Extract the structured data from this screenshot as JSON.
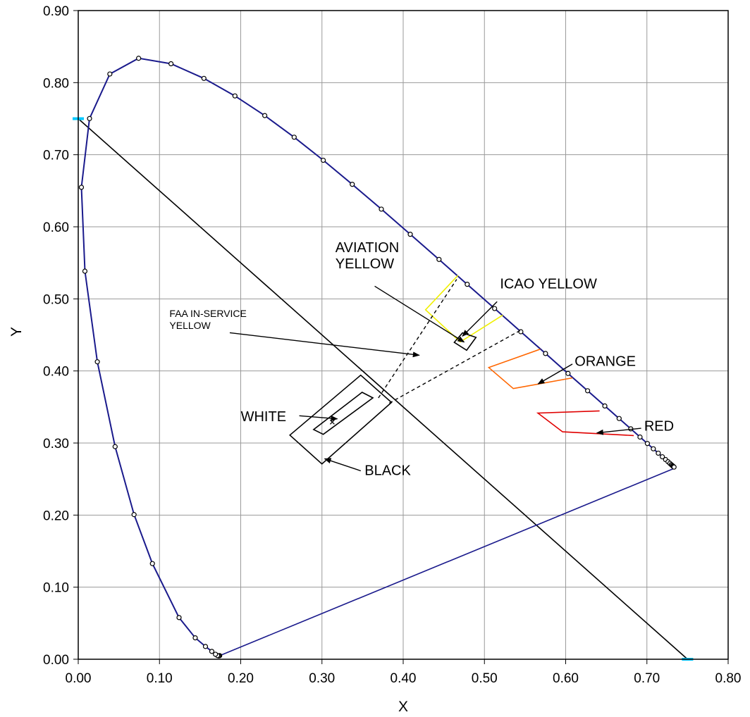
{
  "chart_data": {
    "type": "scatter",
    "title": "",
    "xlabel": "X",
    "ylabel": "Y",
    "xlim": [
      0,
      0.8
    ],
    "ylim": [
      0,
      0.9
    ],
    "x_ticks": [
      "0.00",
      "0.10",
      "0.20",
      "0.30",
      "0.40",
      "0.50",
      "0.60",
      "0.70",
      "0.80"
    ],
    "y_ticks": [
      "0.00",
      "0.10",
      "0.20",
      "0.30",
      "0.40",
      "0.50",
      "0.60",
      "0.70",
      "0.80",
      "0.90"
    ],
    "grid": true,
    "colors": {
      "locus": "#1a1a8c",
      "yellow": "#f0f000",
      "orange": "#ff6600",
      "red": "#e00000",
      "black": "#000000",
      "cyan": "#00c8ff"
    },
    "spectral_locus": [
      [
        0.1741,
        0.005
      ],
      [
        0.1738,
        0.0049
      ],
      [
        0.1733,
        0.0048
      ],
      [
        0.1726,
        0.0048
      ],
      [
        0.1714,
        0.0051
      ],
      [
        0.1689,
        0.0069
      ],
      [
        0.1644,
        0.0109
      ],
      [
        0.1566,
        0.0177
      ],
      [
        0.144,
        0.0297
      ],
      [
        0.1241,
        0.0578
      ],
      [
        0.0913,
        0.1327
      ],
      [
        0.0687,
        0.2007
      ],
      [
        0.0454,
        0.295
      ],
      [
        0.0235,
        0.4127
      ],
      [
        0.0082,
        0.5384
      ],
      [
        0.0039,
        0.6548
      ],
      [
        0.0139,
        0.7502
      ],
      [
        0.0389,
        0.812
      ],
      [
        0.0743,
        0.8338
      ],
      [
        0.1142,
        0.8262
      ],
      [
        0.1547,
        0.8059
      ],
      [
        0.1929,
        0.7816
      ],
      [
        0.2296,
        0.7543
      ],
      [
        0.2658,
        0.7243
      ],
      [
        0.3016,
        0.6923
      ],
      [
        0.3373,
        0.6589
      ],
      [
        0.3731,
        0.6245
      ],
      [
        0.4087,
        0.5896
      ],
      [
        0.4441,
        0.5547
      ],
      [
        0.4788,
        0.5202
      ],
      [
        0.5125,
        0.4866
      ],
      [
        0.5448,
        0.4544
      ],
      [
        0.5752,
        0.4242
      ],
      [
        0.6029,
        0.3965
      ],
      [
        0.627,
        0.3725
      ],
      [
        0.6482,
        0.3514
      ],
      [
        0.6658,
        0.334
      ],
      [
        0.6801,
        0.3197
      ],
      [
        0.6915,
        0.3083
      ],
      [
        0.7006,
        0.2993
      ],
      [
        0.7079,
        0.292
      ],
      [
        0.714,
        0.2859
      ],
      [
        0.719,
        0.2809
      ],
      [
        0.723,
        0.277
      ],
      [
        0.726,
        0.274
      ],
      [
        0.7283,
        0.2717
      ],
      [
        0.73,
        0.27
      ],
      [
        0.7311,
        0.2689
      ],
      [
        0.732,
        0.268
      ],
      [
        0.7327,
        0.2673
      ],
      [
        0.7334,
        0.2666
      ]
    ],
    "purple_line": [
      [
        0.1741,
        0.005
      ],
      [
        0.7347,
        0.2653
      ]
    ],
    "diagonal_line": [
      [
        0.0,
        0.75
      ],
      [
        0.75,
        0.0
      ]
    ],
    "cyan_markers": [
      [
        0.0,
        0.75
      ],
      [
        0.75,
        0.0
      ]
    ],
    "regions": [
      {
        "name": "ICAO YELLOW",
        "color": "yellow",
        "closed": false,
        "points": [
          [
            0.4674,
            0.5326
          ],
          [
            0.4275,
            0.4849
          ],
          [
            0.4702,
            0.4402
          ],
          [
            0.5225,
            0.4775
          ]
        ]
      },
      {
        "name": "AVIATION YELLOW",
        "color": "black",
        "closed": true,
        "points": [
          [
            0.4628,
            0.4396
          ],
          [
            0.4731,
            0.4528
          ],
          [
            0.4896,
            0.4466
          ],
          [
            0.4781,
            0.4287
          ]
        ]
      },
      {
        "name": "FAA IN-SERVICE YELLOW",
        "color": "black",
        "closed": false,
        "dashed": true,
        "segments": [
          [
            [
              0.3695,
              0.3625
            ],
            [
              0.4659,
              0.5271
            ]
          ],
          [
            [
              0.3829,
              0.3554
            ],
            [
              0.5439,
              0.4561
            ]
          ]
        ]
      },
      {
        "name": "ORANGE",
        "color": "orange",
        "closed": false,
        "points": [
          [
            0.5687,
            0.4302
          ],
          [
            0.5053,
            0.4048
          ],
          [
            0.5355,
            0.3755
          ],
          [
            0.6084,
            0.3904
          ]
        ]
      },
      {
        "name": "RED",
        "color": "red",
        "closed": false,
        "points": [
          [
            0.6417,
            0.3446
          ],
          [
            0.5658,
            0.3415
          ],
          [
            0.5962,
            0.3155
          ],
          [
            0.6838,
            0.3104
          ]
        ]
      },
      {
        "name": "WHITE",
        "color": "black",
        "closed": true,
        "points": [
          [
            0.3016,
            0.312
          ],
          [
            0.2897,
            0.3187
          ],
          [
            0.3494,
            0.3704
          ],
          [
            0.3627,
            0.3626
          ]
        ]
      },
      {
        "name": "BLACK",
        "color": "black",
        "closed": true,
        "points": [
          [
            0.2605,
            0.3109
          ],
          [
            0.3477,
            0.3941
          ],
          [
            0.3856,
            0.3563
          ],
          [
            0.3,
            0.271
          ]
        ]
      }
    ],
    "white_point": [
      0.3127,
      0.329
    ],
    "annotations": [
      {
        "id": "aviation",
        "lines": [
          "AVIATION",
          "YELLOW"
        ],
        "label_xy": [
          0.3165,
          0.565
        ],
        "arrow_from": [
          0.3649,
          0.5176
        ],
        "arrow_to": [
          0.475,
          0.44
        ],
        "small": false
      },
      {
        "id": "icao",
        "lines": [
          "ICAO YELLOW"
        ],
        "label_xy": [
          0.5192,
          0.5146
        ],
        "arrow_from": [
          0.5156,
          0.4962
        ],
        "arrow_to": [
          0.4729,
          0.4482
        ],
        "small": false
      },
      {
        "id": "faa",
        "lines": [
          "FAA IN-SERVICE",
          "YELLOW"
        ],
        "label_xy": [
          0.1123,
          0.4747
        ],
        "arrow_from": [
          0.1865,
          0.453
        ],
        "arrow_to": [
          0.4198,
          0.4218
        ],
        "small": true
      },
      {
        "id": "orange",
        "lines": [
          "ORANGE"
        ],
        "label_xy": [
          0.6111,
          0.4071
        ],
        "arrow_from": [
          0.6083,
          0.4096
        ],
        "arrow_to": [
          0.566,
          0.382
        ],
        "small": false
      },
      {
        "id": "red",
        "lines": [
          "RED"
        ],
        "label_xy": [
          0.6966,
          0.317
        ],
        "arrow_from": [
          0.6929,
          0.3205
        ],
        "arrow_to": [
          0.6384,
          0.314
        ],
        "small": false
      },
      {
        "id": "white",
        "lines": [
          "WHITE"
        ],
        "label_xy": [
          0.2001,
          0.3301
        ],
        "arrow_from": [
          0.2721,
          0.3378
        ],
        "arrow_to": [
          0.3189,
          0.3335
        ],
        "small": false
      },
      {
        "id": "black",
        "lines": [
          "BLACK"
        ],
        "label_xy": [
          0.3525,
          0.2554
        ],
        "arrow_from": [
          0.3478,
          0.2614
        ],
        "arrow_to": [
          0.3033,
          0.2782
        ],
        "small": false
      }
    ]
  }
}
